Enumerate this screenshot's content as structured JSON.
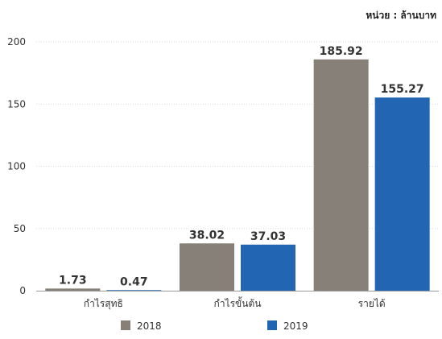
{
  "unit_label": "หน่วย : ล้านบาท",
  "chart_data": {
    "type": "bar",
    "categories": [
      "กำไรสุทธิ",
      "กำไรขั้นต้น",
      "รายได้"
    ],
    "series": [
      {
        "name": "2018",
        "values": [
          1.73,
          38.02,
          185.92
        ],
        "labels": [
          "1.73",
          "38.02",
          "185.92"
        ]
      },
      {
        "name": "2019",
        "values": [
          0.47,
          37.03,
          155.27
        ],
        "labels": [
          "0.47",
          "37.03",
          "155.27"
        ]
      }
    ],
    "y_ticks": [
      "0",
      "50",
      "100",
      "150",
      "200"
    ],
    "ylim": [
      0,
      200
    ],
    "grid": true,
    "legend_position": "bottom",
    "colors": {
      "2018": "#878078",
      "2019": "#2266b3",
      "grid": "#dddddd",
      "text": "#333333",
      "axis": "#999999"
    }
  }
}
